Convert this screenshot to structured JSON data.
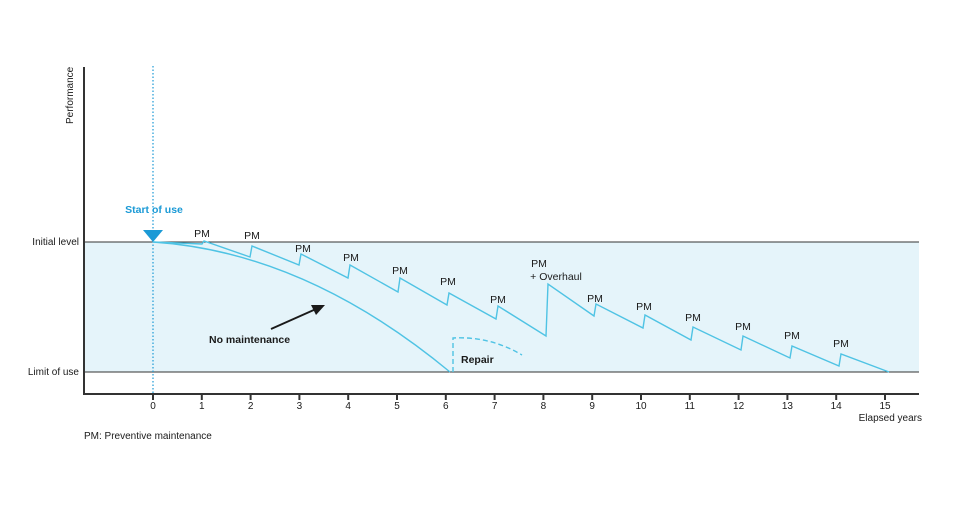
{
  "axes": {
    "y_label": "Performance",
    "x_label": "Elapsed years",
    "x_ticks": [
      "0",
      "1",
      "2",
      "3",
      "4",
      "5",
      "6",
      "7",
      "8",
      "9",
      "10",
      "11",
      "12",
      "13",
      "14",
      "15"
    ],
    "initial_level_label": "Initial level",
    "limit_of_use_label": "Limit of use"
  },
  "annotations": {
    "start_of_use": "Start of use",
    "no_maintenance": "No maintenance",
    "repair": "Repair",
    "pm_overhaul_line1": "PM",
    "pm_overhaul_line2": "+ Overhaul",
    "pm_labels": [
      "PM",
      "PM",
      "PM",
      "PM",
      "PM",
      "PM",
      "PM",
      "PM",
      "PM",
      "PM",
      "PM",
      "PM",
      "PM"
    ]
  },
  "footnote": "PM: Preventive maintenance",
  "colors": {
    "curve": "#4fc3e4",
    "band_fill": "#e5f4fa",
    "accent": "#1b9ad6",
    "axis": "#333333"
  }
}
